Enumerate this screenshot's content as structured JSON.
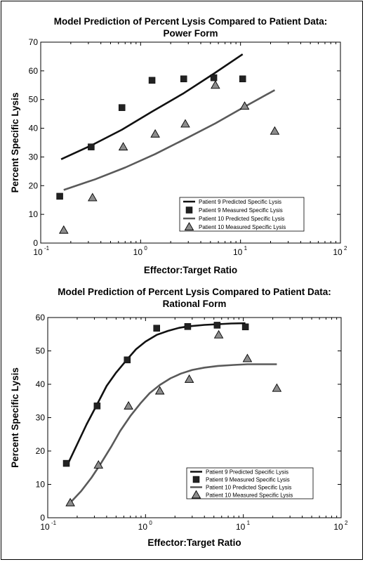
{
  "chart_data": [
    {
      "type": "line",
      "title": "Model Prediction of Percent Lysis Compared to Patient Data:",
      "subtitle": "Power Form",
      "xlabel": "Effector:Target Ratio",
      "ylabel": "Percent Specific Lysis",
      "xscale": "log",
      "xlim": [
        0.1,
        100
      ],
      "ylim": [
        0,
        70
      ],
      "yticks": [
        0,
        10,
        20,
        30,
        40,
        50,
        60,
        70
      ],
      "xtick_labels": [
        "10",
        "10",
        "10",
        "10"
      ],
      "xtick_exponents": [
        "-1",
        "0",
        "1",
        "2"
      ],
      "legend_position": "lower-right",
      "series": [
        {
          "name": "Patient 9 Predicted Specific Lysis",
          "kind": "line",
          "color": "#111111",
          "x": [
            0.16,
            0.32,
            0.65,
            1.3,
            2.7,
            5.4,
            10.5
          ],
          "y": [
            29.2,
            34.0,
            39.5,
            45.8,
            52.2,
            59.0,
            65.8
          ]
        },
        {
          "name": "Patient 9 Measured Specific Lysis",
          "kind": "marker",
          "marker": "square",
          "color": "#222222",
          "x": [
            0.155,
            0.32,
            0.65,
            1.3,
            2.7,
            5.4,
            10.5
          ],
          "y": [
            16.3,
            33.5,
            47.2,
            56.7,
            57.2,
            57.6,
            57.2
          ]
        },
        {
          "name": "Patient 10 Predicted Specific Lysis",
          "kind": "line",
          "color": "#5a5a5a",
          "x": [
            0.17,
            0.35,
            0.7,
            1.4,
            2.8,
            5.6,
            11.0,
            22.0
          ],
          "y": [
            18.5,
            22.2,
            26.3,
            31.0,
            36.3,
            41.7,
            47.5,
            53.3
          ]
        },
        {
          "name": "Patient 10 Measured Specific Lysis",
          "kind": "marker",
          "marker": "triangle",
          "color": "#8c8c8c",
          "x": [
            0.17,
            0.33,
            0.67,
            1.4,
            2.8,
            5.6,
            11.0,
            22.0
          ],
          "y": [
            4.5,
            15.8,
            33.5,
            38.0,
            41.5,
            55.0,
            47.7,
            39.0
          ]
        }
      ]
    },
    {
      "type": "line",
      "title": "Model Prediction of Percent Lysis Compared to Patient Data:",
      "subtitle": "Rational Form",
      "xlabel": "Effector:Target Ratio",
      "ylabel": "Percent Specific Lysis",
      "xscale": "log",
      "xlim": [
        0.1,
        100
      ],
      "ylim": [
        0,
        60
      ],
      "yticks": [
        0,
        10,
        20,
        30,
        40,
        50,
        60
      ],
      "xtick_labels": [
        "10",
        "10",
        "10",
        "10"
      ],
      "xtick_exponents": [
        "-1",
        "0",
        "1",
        "2"
      ],
      "legend_position": "lower-right",
      "series": [
        {
          "name": "Patient 9 Predicted Specific Lysis",
          "kind": "line",
          "color": "#111111",
          "x": [
            0.16,
            0.2,
            0.25,
            0.32,
            0.4,
            0.5,
            0.65,
            0.8,
            1.0,
            1.3,
            1.7,
            2.2,
            2.8,
            4.0,
            5.5,
            7.5,
            10.5
          ],
          "y": [
            16.0,
            22.0,
            28.0,
            34.0,
            39.5,
            43.5,
            47.5,
            50.5,
            52.8,
            54.8,
            56.0,
            56.9,
            57.4,
            57.8,
            58.0,
            58.2,
            58.3
          ]
        },
        {
          "name": "Patient 9 Measured Specific Lysis",
          "kind": "marker",
          "marker": "square",
          "color": "#222222",
          "x": [
            0.155,
            0.32,
            0.65,
            1.3,
            2.7,
            5.4,
            10.5
          ],
          "y": [
            16.3,
            33.5,
            47.3,
            56.8,
            57.3,
            57.7,
            57.2
          ]
        },
        {
          "name": "Patient 10 Predicted Specific Lysis",
          "kind": "line",
          "color": "#5a5a5a",
          "x": [
            0.17,
            0.22,
            0.28,
            0.35,
            0.45,
            0.55,
            0.7,
            0.9,
            1.1,
            1.4,
            1.8,
            2.3,
            3.0,
            4.0,
            5.5,
            8.0,
            11.0,
            16.0,
            22.0
          ],
          "y": [
            4.5,
            8.0,
            12.0,
            16.3,
            21.5,
            26.0,
            30.5,
            34.5,
            37.3,
            39.8,
            41.8,
            43.2,
            44.3,
            45.0,
            45.5,
            45.8,
            46.0,
            46.0,
            46.0
          ]
        },
        {
          "name": "Patient 10 Measured Specific Lysis",
          "kind": "marker",
          "marker": "triangle",
          "color": "#8c8c8c",
          "x": [
            0.17,
            0.33,
            0.67,
            1.4,
            2.8,
            5.6,
            11.0,
            22.0
          ],
          "y": [
            4.5,
            15.8,
            33.5,
            38.0,
            41.5,
            54.8,
            47.7,
            38.8
          ]
        }
      ]
    }
  ]
}
